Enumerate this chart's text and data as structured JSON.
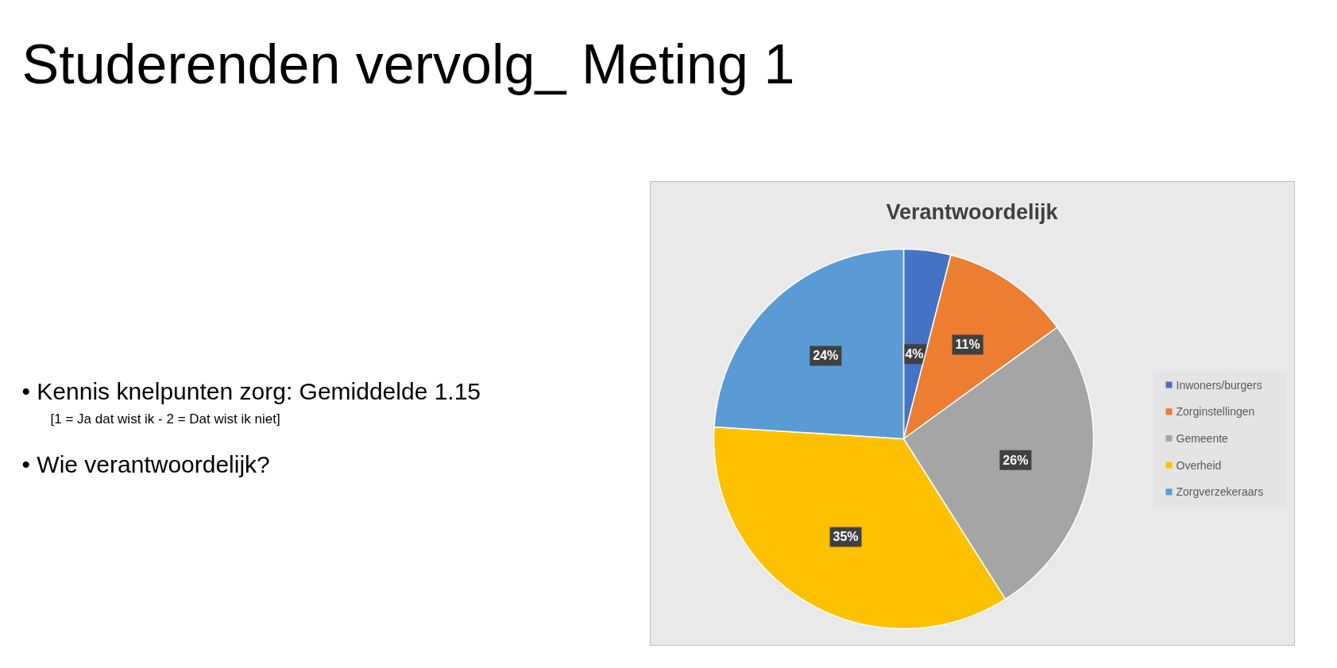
{
  "chart_data": {
    "type": "pie",
    "title": "Verantwoordelijk",
    "categories": [
      "Inwoners/burgers",
      "Zorginstellingen",
      "Gemeente",
      "Overheid",
      "Zorgverzekeraars"
    ],
    "values": [
      4,
      11,
      26,
      35,
      24
    ],
    "colors": [
      "#4472c4",
      "#ed7d31",
      "#a5a5a5",
      "#ffc000",
      "#5b9bd5"
    ],
    "value_labels": [
      "4%",
      "11%",
      "26%",
      "35%",
      "24%"
    ],
    "legend": "right",
    "annotations": [
      "Studerenden vervolg_ Meting 1",
      "•   Kennis knelpunten zorg: Gemiddelde 1.15",
      "[1 = Ja dat wist ik -  2  = Dat wist ik niet]",
      "•   Wie verantwoordelijk?"
    ]
  }
}
